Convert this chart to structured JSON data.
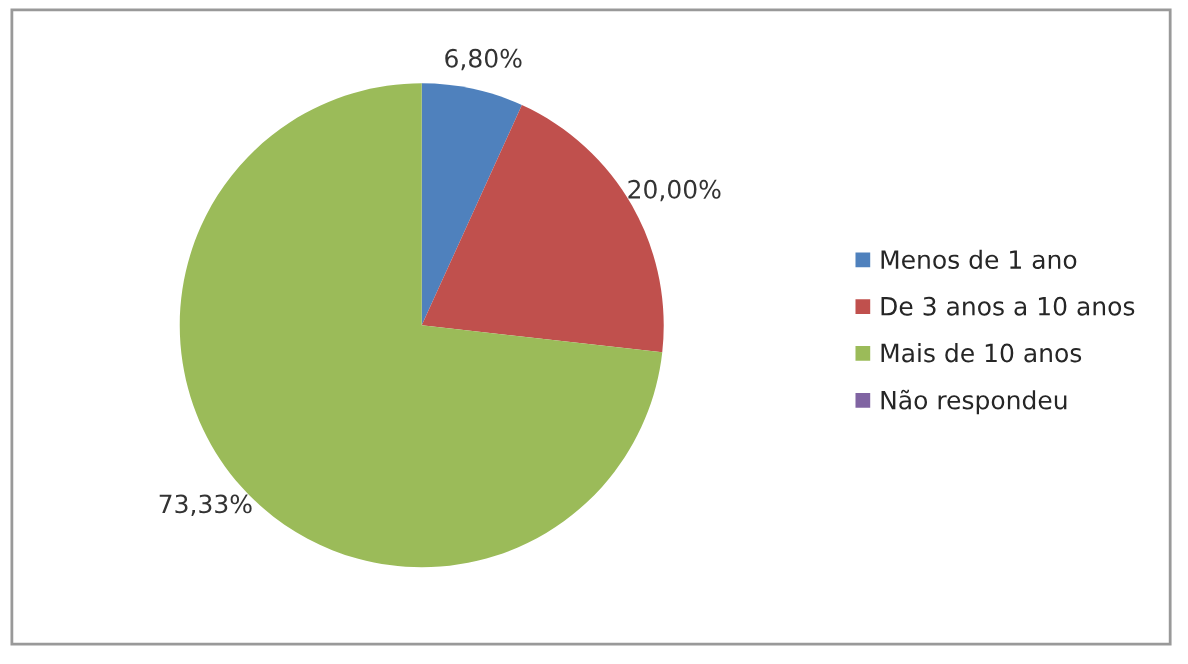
{
  "chart_data": {
    "type": "pie",
    "categories": [
      "Menos de 1 ano",
      "De 3 anos a 10 anos",
      "Mais de 10 anos",
      "Não respondeu"
    ],
    "values": [
      6.8,
      20.0,
      73.33,
      0
    ],
    "colors": [
      "#4f81bd",
      "#c0504d",
      "#9bbb59",
      "#8064a2"
    ],
    "value_labels": [
      "6,80%",
      "20,00%",
      "73,33%",
      null
    ],
    "legend": "right"
  }
}
